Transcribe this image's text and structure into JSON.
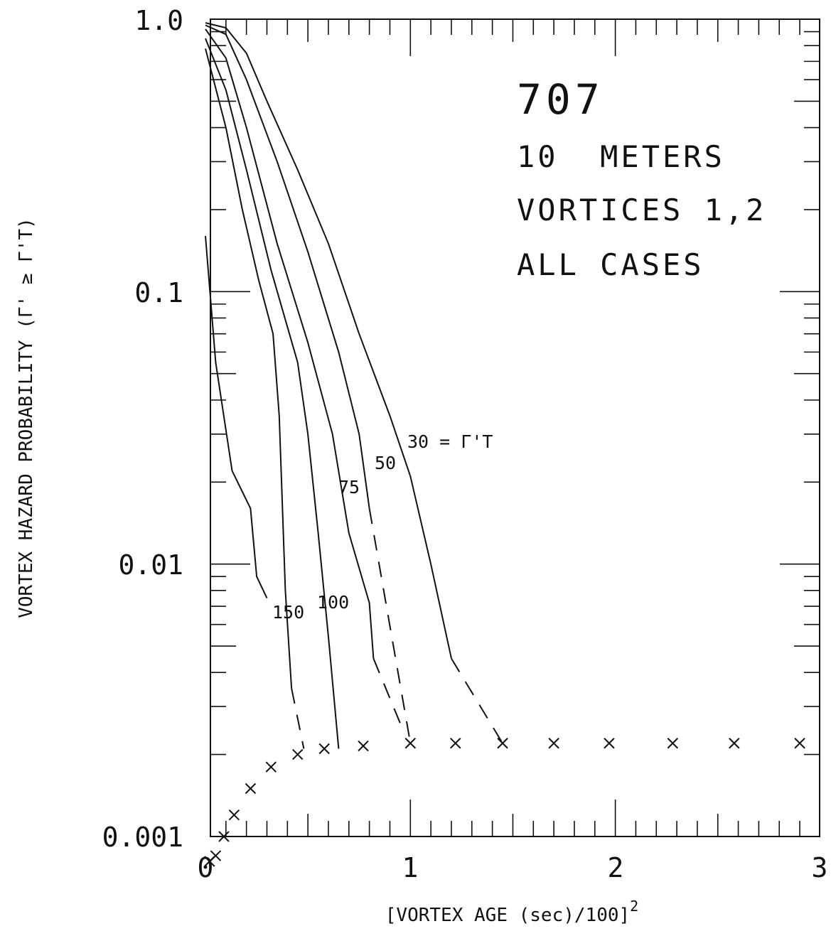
{
  "chart_data": {
    "type": "line",
    "title": "",
    "xlabel": "[VORTEX AGE (sec)/100]",
    "xlabel_superscript": "2",
    "ylabel": "VORTEX HAZARD PROBABILITY (Γ' ≥ Γ'T)",
    "xlim": [
      0,
      3
    ],
    "ylim": [
      0.001,
      1.0
    ],
    "y_scale": "log",
    "grid": false,
    "x_ticks": [
      "0",
      "1",
      "2",
      "3"
    ],
    "y_ticks": [
      "1.0",
      "0.1",
      "0.01",
      "0.001"
    ],
    "annotations": [
      "707",
      "10  METERS",
      "VORTICES 1,2",
      "ALL CASES"
    ],
    "curve_label_suffix": "= Γ'T",
    "series": [
      {
        "name": "30",
        "solid": [
          [
            0,
            0.97
          ],
          [
            0.1,
            0.93
          ],
          [
            0.2,
            0.75
          ],
          [
            0.3,
            0.5
          ],
          [
            0.45,
            0.28
          ],
          [
            0.6,
            0.15
          ],
          [
            0.75,
            0.07
          ],
          [
            0.9,
            0.035
          ],
          [
            1.0,
            0.021
          ],
          [
            1.1,
            0.01
          ],
          [
            1.2,
            0.0045
          ]
        ],
        "dashed": [
          [
            1.2,
            0.0045
          ],
          [
            1.45,
            0.0022
          ]
        ]
      },
      {
        "name": "50",
        "solid": [
          [
            0,
            0.95
          ],
          [
            0.1,
            0.88
          ],
          [
            0.2,
            0.6
          ],
          [
            0.35,
            0.3
          ],
          [
            0.5,
            0.14
          ],
          [
            0.65,
            0.06
          ],
          [
            0.75,
            0.03
          ],
          [
            0.8,
            0.016
          ]
        ],
        "dashed": [
          [
            0.8,
            0.016
          ],
          [
            1.0,
            0.0022
          ]
        ]
      },
      {
        "name": "75",
        "solid": [
          [
            0,
            0.92
          ],
          [
            0.1,
            0.72
          ],
          [
            0.2,
            0.4
          ],
          [
            0.35,
            0.15
          ],
          [
            0.5,
            0.065
          ],
          [
            0.62,
            0.03
          ],
          [
            0.7,
            0.013
          ],
          [
            0.8,
            0.0072
          ],
          [
            0.82,
            0.0045
          ]
        ],
        "dashed": [
          [
            0.82,
            0.0045
          ],
          [
            0.96,
            0.0025
          ]
        ]
      },
      {
        "name": "100",
        "solid": [
          [
            0,
            0.85
          ],
          [
            0.1,
            0.55
          ],
          [
            0.2,
            0.28
          ],
          [
            0.32,
            0.12
          ],
          [
            0.45,
            0.055
          ],
          [
            0.5,
            0.03
          ],
          [
            0.55,
            0.013
          ],
          [
            0.6,
            0.0054
          ],
          [
            0.65,
            0.0021
          ]
        ],
        "dashed": []
      },
      {
        "name": "150",
        "solid": [
          [
            0,
            0.78
          ],
          [
            0.1,
            0.4
          ],
          [
            0.18,
            0.2
          ],
          [
            0.26,
            0.11
          ],
          [
            0.33,
            0.07
          ],
          [
            0.36,
            0.035
          ],
          [
            0.39,
            0.008
          ],
          [
            0.42,
            0.0035
          ]
        ],
        "dashed": [
          [
            0.42,
            0.0035
          ],
          [
            0.48,
            0.0021
          ]
        ]
      },
      {
        "name": "",
        "solid": [
          [
            0,
            0.16
          ],
          [
            0.05,
            0.055
          ],
          [
            0.13,
            0.022
          ],
          [
            0.22,
            0.016
          ],
          [
            0.25,
            0.009
          ],
          [
            0.3,
            0.0075
          ]
        ],
        "dashed": []
      }
    ],
    "x_markers": [
      [
        0.02,
        0.0008
      ],
      [
        0.05,
        0.00085
      ],
      [
        0.09,
        0.001
      ],
      [
        0.14,
        0.0012
      ],
      [
        0.22,
        0.0015
      ],
      [
        0.32,
        0.0018
      ],
      [
        0.45,
        0.002
      ],
      [
        0.58,
        0.0021
      ],
      [
        0.77,
        0.00215
      ],
      [
        1.0,
        0.0022
      ],
      [
        1.22,
        0.0022
      ],
      [
        1.45,
        0.0022
      ],
      [
        1.7,
        0.0022
      ],
      [
        1.97,
        0.0022
      ],
      [
        2.28,
        0.0022
      ],
      [
        2.58,
        0.0022
      ],
      [
        2.9,
        0.0022
      ]
    ]
  }
}
